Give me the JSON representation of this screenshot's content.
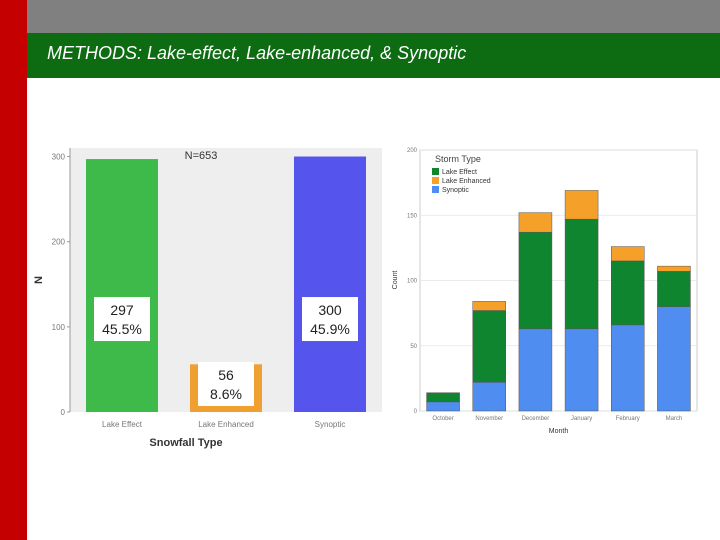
{
  "slide": {
    "title": "METHODS: Lake-effect, Lake-enhanced, & Synoptic",
    "colors": {
      "strip": "#c40000",
      "top_band": "#808080",
      "title_band": "#0d6b12"
    }
  },
  "chart_data": [
    {
      "type": "bar",
      "title": "N=653",
      "xlabel": "Snowfall Type",
      "ylabel": "N",
      "ylim": [
        0,
        310
      ],
      "yticks": [
        0,
        100,
        200,
        300
      ],
      "categories": [
        "Lake Effect",
        "Lake Enhanced",
        "Synoptic"
      ],
      "values": [
        297,
        56,
        300
      ],
      "colors": [
        "#3dba4a",
        "#f0a030",
        "#5555ee"
      ],
      "annotations": [
        {
          "count": "297",
          "percent": "45.5%"
        },
        {
          "count": "56",
          "percent": "8.6%"
        },
        {
          "count": "300",
          "percent": "45.9%"
        }
      ]
    },
    {
      "type": "bar",
      "stacked": true,
      "xlabel": "Month",
      "ylabel": "Count",
      "ylim": [
        0,
        200
      ],
      "yticks": [
        0,
        50,
        100,
        150,
        200
      ],
      "categories": [
        "October",
        "November",
        "December",
        "January",
        "February",
        "March"
      ],
      "legend_title": "Storm Type",
      "legend_position": "top-left",
      "grid": true,
      "series": [
        {
          "name": "Synoptic",
          "color": "#4f8ef0",
          "values": [
            7,
            22,
            63,
            63,
            66,
            80
          ]
        },
        {
          "name": "Lake Effect",
          "color": "#0f8530",
          "values": [
            7,
            55,
            74,
            84,
            49,
            27
          ]
        },
        {
          "name": "Lake Enhanced",
          "color": "#f5a028",
          "values": [
            0,
            7,
            15,
            22,
            11,
            4
          ]
        }
      ]
    }
  ]
}
